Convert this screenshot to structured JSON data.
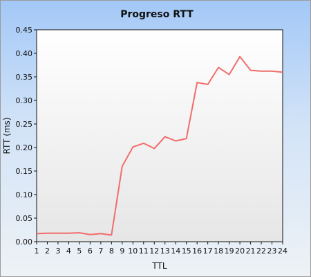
{
  "chart_data": {
    "type": "line",
    "title": "Progreso RTT",
    "xlabel": "TTL",
    "ylabel": "RTT (ms)",
    "categories": [
      "1",
      "2",
      "3",
      "4",
      "5",
      "6",
      "7",
      "8",
      "9",
      "10",
      "11",
      "12",
      "13",
      "14",
      "15",
      "16",
      "17",
      "18",
      "19",
      "20",
      "21",
      "22",
      "23",
      "24"
    ],
    "series": [
      {
        "values": [
          0.017,
          0.018,
          0.018,
          0.018,
          0.019,
          0.015,
          0.017,
          0.014,
          0.16,
          0.201,
          0.209,
          0.198,
          0.223,
          0.214,
          0.219,
          0.338,
          0.334,
          0.37,
          0.355,
          0.393,
          0.364,
          0.362,
          0.362,
          0.36
        ],
        "color": "#f26b6b"
      }
    ],
    "ylim": [
      0,
      0.45
    ],
    "yticks": [
      "0.00",
      "0.05",
      "0.10",
      "0.15",
      "0.20",
      "0.25",
      "0.30",
      "0.35",
      "0.40",
      "0.45"
    ],
    "grid": false,
    "legend": "none",
    "colors": {
      "plot_background_top": "#ffffff",
      "plot_background_bottom": "#e6e6e6",
      "line": "#f26b6b"
    }
  }
}
